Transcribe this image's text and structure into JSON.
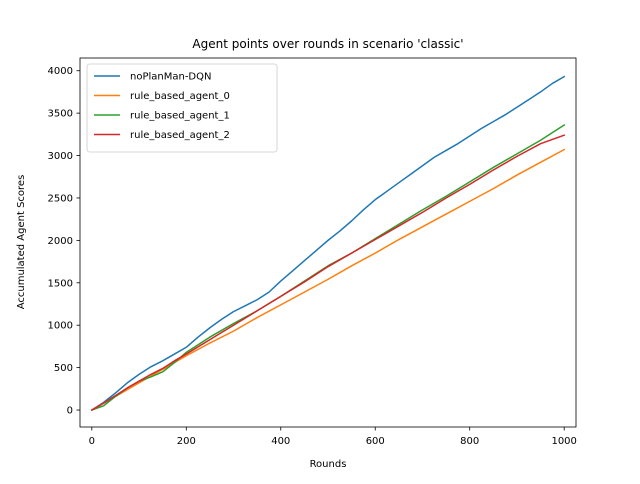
{
  "chart_data": {
    "type": "line",
    "title": "Agent points over rounds in scenario 'classic'",
    "xlabel": "Rounds",
    "ylabel": "Accumulated Agent Scores",
    "xlim": [
      -25,
      1025
    ],
    "ylim": [
      -200,
      4150
    ],
    "xticks": [
      0,
      200,
      400,
      600,
      800,
      1000
    ],
    "yticks": [
      0,
      500,
      1000,
      1500,
      2000,
      2500,
      3000,
      3500,
      4000
    ],
    "grid": false,
    "legend_position": "top-left",
    "series": [
      {
        "name": "noPlanMan-DQN",
        "color": "#1f77b4",
        "x": [
          0,
          25,
          50,
          75,
          100,
          125,
          150,
          175,
          200,
          225,
          250,
          275,
          300,
          325,
          350,
          375,
          400,
          425,
          450,
          475,
          500,
          525,
          550,
          575,
          600,
          625,
          650,
          675,
          700,
          725,
          750,
          775,
          800,
          825,
          850,
          875,
          900,
          925,
          950,
          975,
          1000
        ],
        "y": [
          0,
          90,
          200,
          320,
          420,
          510,
          580,
          660,
          740,
          860,
          970,
          1070,
          1160,
          1230,
          1300,
          1390,
          1520,
          1640,
          1760,
          1880,
          2000,
          2110,
          2230,
          2360,
          2480,
          2580,
          2680,
          2780,
          2880,
          2980,
          3060,
          3140,
          3230,
          3320,
          3400,
          3480,
          3570,
          3660,
          3750,
          3850,
          3930
        ]
      },
      {
        "name": "rule_based_agent_0",
        "color": "#ff7f0e",
        "x": [
          0,
          50,
          100,
          150,
          200,
          250,
          300,
          350,
          400,
          450,
          500,
          550,
          600,
          650,
          700,
          750,
          800,
          850,
          900,
          950,
          1000
        ],
        "y": [
          0,
          160,
          320,
          480,
          640,
          790,
          930,
          1090,
          1240,
          1390,
          1540,
          1700,
          1850,
          2010,
          2160,
          2310,
          2460,
          2610,
          2770,
          2920,
          3070
        ]
      },
      {
        "name": "rule_based_agent_1",
        "color": "#2ca02c",
        "x": [
          0,
          25,
          50,
          75,
          100,
          125,
          150,
          175,
          200,
          250,
          300,
          350,
          400,
          450,
          500,
          550,
          600,
          650,
          700,
          750,
          800,
          850,
          900,
          950,
          1000
        ],
        "y": [
          0,
          50,
          160,
          260,
          340,
          390,
          450,
          560,
          680,
          860,
          1020,
          1170,
          1340,
          1520,
          1700,
          1850,
          2020,
          2190,
          2360,
          2520,
          2690,
          2860,
          3020,
          3180,
          3360
        ]
      },
      {
        "name": "rule_based_agent_2",
        "color": "#d62728",
        "x": [
          0,
          25,
          50,
          75,
          100,
          125,
          150,
          175,
          200,
          250,
          300,
          350,
          400,
          450,
          500,
          550,
          600,
          650,
          700,
          750,
          800,
          850,
          900,
          950,
          1000
        ],
        "y": [
          0,
          80,
          170,
          260,
          340,
          420,
          490,
          580,
          660,
          830,
          1000,
          1170,
          1340,
          1510,
          1690,
          1850,
          2010,
          2170,
          2330,
          2500,
          2660,
          2830,
          2990,
          3140,
          3240
        ]
      }
    ]
  }
}
